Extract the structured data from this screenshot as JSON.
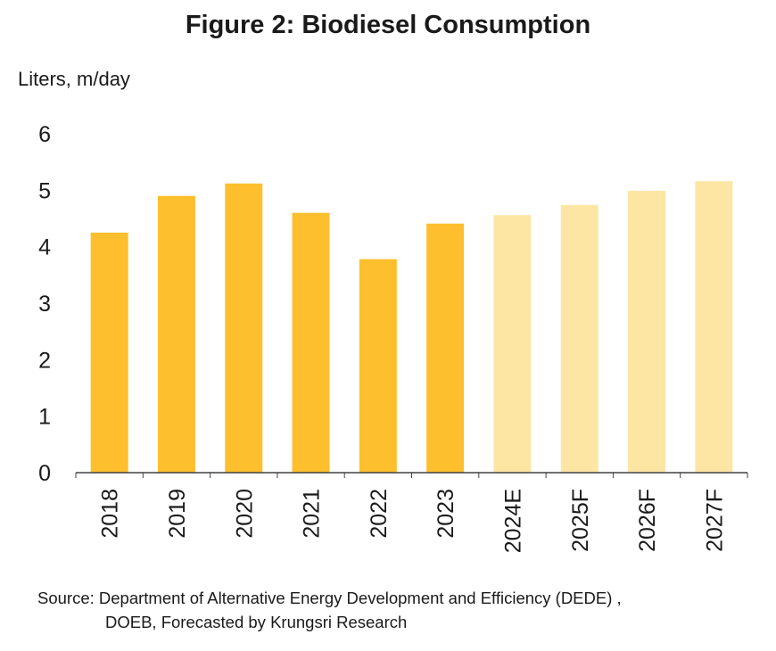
{
  "title": "Figure 2: Biodiesel Consumption",
  "source": {
    "line1": "Source: Department of Alternative Energy Development and Efficiency (DEDE) ,",
    "line2": "DOEB, Forecasted by Krungsri Research"
  },
  "chart_data": {
    "type": "bar",
    "title": "Figure 2: Biodiesel Consumption",
    "ylabel": "Liters, m/day",
    "xlabel": "",
    "categories": [
      "2018",
      "2019",
      "2020",
      "2021",
      "2022",
      "2023",
      "2024E",
      "2025F",
      "2026F",
      "2027F"
    ],
    "values": [
      4.25,
      4.9,
      5.12,
      4.6,
      3.78,
      4.41,
      4.56,
      4.74,
      4.99,
      5.16
    ],
    "ylim": [
      0,
      6
    ],
    "yticks": [
      0,
      1,
      2,
      3,
      4,
      5,
      6
    ],
    "grid": false,
    "legend": "none",
    "colors": {
      "actual": "#FDBF2D",
      "forecast": "#FDE5A4",
      "axis": "#404040"
    },
    "forecast_categories": [
      "2024E",
      "2025F",
      "2026F",
      "2027F"
    ]
  }
}
